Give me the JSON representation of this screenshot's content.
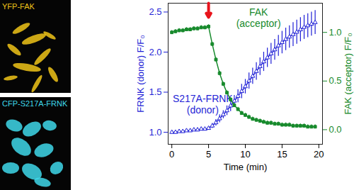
{
  "panels": [
    {
      "label": "YFP-FAK",
      "color": "#f0c419"
    },
    {
      "label": "CFP-S217A-FRNK",
      "color": "#3fd8ea"
    }
  ],
  "chart_data": {
    "type": "line",
    "x_label": "Time (min)",
    "y_label": "FRNK (donor) F/F₀",
    "y2_label": "FAK (acceptor) F/F₀",
    "xlim": [
      -0.5,
      20.5
    ],
    "xticks": [
      0,
      5,
      10,
      15,
      20
    ],
    "ylim": [
      0.85,
      2.61
    ],
    "yticks": [
      {
        "value": 1,
        "label": "1.0"
      },
      {
        "value": 1.5,
        "label": "1.5"
      },
      {
        "value": 2,
        "label": "2.0"
      },
      {
        "value": 2.5,
        "label": "2.5"
      }
    ],
    "y2lim": [
      -0.15,
      1.3
    ],
    "y2ticks": [
      {
        "value": 0,
        "label": "0.0"
      },
      {
        "value": 0.5,
        "label": "0.5"
      },
      {
        "value": 1,
        "label": "1.0"
      }
    ],
    "stimulus_time": 5,
    "stimulus_color": "#e8141c",
    "x": [
      0,
      0.5,
      1,
      1.5,
      2,
      2.5,
      3,
      3.5,
      4,
      4.5,
      5,
      5.5,
      6,
      6.5,
      7,
      7.5,
      8,
      8.5,
      9,
      9.5,
      10,
      10.5,
      11,
      11.5,
      12,
      12.5,
      13,
      13.5,
      14,
      14.5,
      15,
      15.5,
      16,
      16.5,
      17,
      17.5,
      18,
      18.5,
      19,
      19.5
    ],
    "series": [
      {
        "name": "S217A-FRNK (donor)",
        "color": "#1f1fd6",
        "marker": "triangle",
        "axis": "y",
        "label_at": {
          "x": 4.2,
          "y": 1.47
        },
        "values": [
          1.0,
          1.0,
          1.01,
          1.01,
          1.02,
          1.02,
          1.03,
          1.03,
          1.04,
          1.04,
          1.05,
          1.08,
          1.12,
          1.17,
          1.22,
          1.27,
          1.33,
          1.39,
          1.45,
          1.51,
          1.57,
          1.64,
          1.7,
          1.76,
          1.82,
          1.88,
          1.93,
          1.98,
          2.03,
          2.08,
          2.12,
          2.16,
          2.19,
          2.22,
          2.25,
          2.28,
          2.31,
          2.33,
          2.35,
          2.37
        ],
        "errors": [
          0.02,
          0.02,
          0.02,
          0.02,
          0.02,
          0.02,
          0.02,
          0.02,
          0.02,
          0.02,
          0.02,
          0.03,
          0.04,
          0.05,
          0.05,
          0.06,
          0.07,
          0.07,
          0.08,
          0.09,
          0.09,
          0.1,
          0.1,
          0.11,
          0.11,
          0.12,
          0.12,
          0.13,
          0.13,
          0.13,
          0.14,
          0.14,
          0.14,
          0.15,
          0.15,
          0.15,
          0.15,
          0.15,
          0.15,
          0.15
        ]
      },
      {
        "name": "FAK (acceptor)",
        "color": "#178a2c",
        "marker": "square",
        "axis": "y2",
        "label_at": {
          "x": 11.8,
          "y": 2.55
        },
        "values": [
          1.0,
          1.01,
          1.02,
          1.02,
          1.03,
          1.03,
          1.04,
          1.04,
          1.05,
          1.05,
          1.06,
          0.88,
          0.72,
          0.58,
          0.47,
          0.38,
          0.31,
          0.25,
          0.21,
          0.17,
          0.15,
          0.13,
          0.11,
          0.1,
          0.09,
          0.08,
          0.07,
          0.07,
          0.06,
          0.06,
          0.05,
          0.05,
          0.05,
          0.04,
          0.04,
          0.04,
          0.04,
          0.03,
          0.03,
          0.03
        ],
        "errors": [
          0.02,
          0.02,
          0.02,
          0.02,
          0.02,
          0.02,
          0.02,
          0.02,
          0.02,
          0.02,
          0.02,
          0.02,
          0.02,
          0.02,
          0.02,
          0.02,
          0.02,
          0.02,
          0.02,
          0.02,
          0.02,
          0.02,
          0.02,
          0.02,
          0.02,
          0.02,
          0.02,
          0.02,
          0.02,
          0.02,
          0.02,
          0.02,
          0.02,
          0.02,
          0.02,
          0.02,
          0.02,
          0.02,
          0.02,
          0.02
        ]
      }
    ]
  }
}
